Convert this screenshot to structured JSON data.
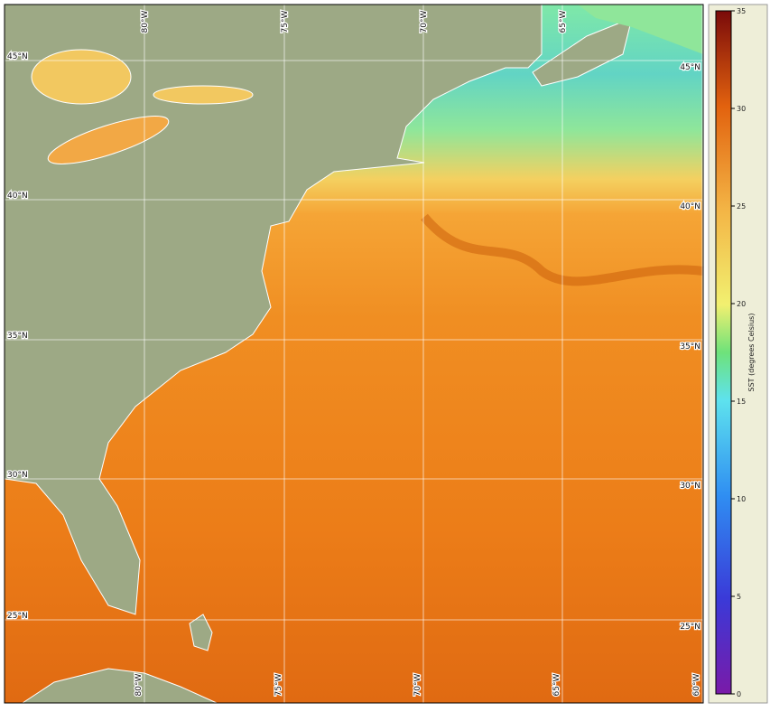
{
  "map": {
    "top_longitude_labels": [
      "80°W",
      "75°W",
      "70°W",
      "65°W"
    ],
    "bottom_longitude_labels": [
      "80°W",
      "75°W",
      "70°W",
      "65°W",
      "60°W"
    ],
    "left_latitude_labels": [
      "45°N",
      "40°N",
      "35°N",
      "30°N",
      "25°N"
    ],
    "right_latitude_labels": [
      "45°N",
      "40°N",
      "35°N",
      "30°N",
      "25°N"
    ]
  },
  "colorbar": {
    "label": "SST (degrees Celsius)",
    "range": [
      0,
      35
    ],
    "ticks": [
      0,
      5,
      10,
      15,
      20,
      25,
      30,
      35
    ]
  }
}
